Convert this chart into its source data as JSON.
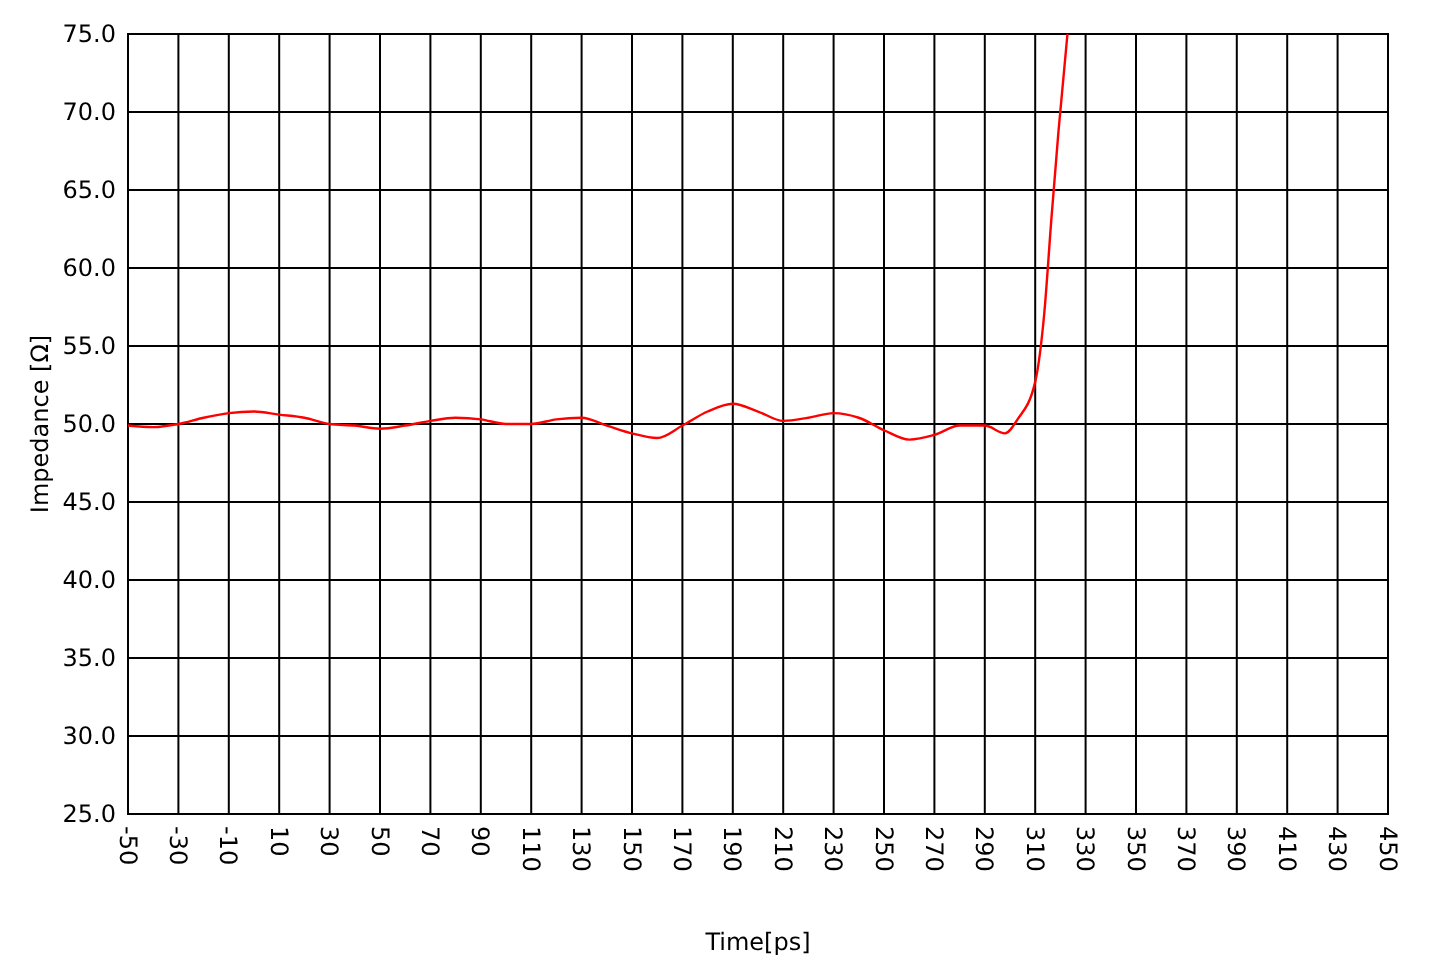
{
  "chart_data": {
    "type": "line",
    "xlabel": "Time[ps]",
    "ylabel": "Impedance [Ω]",
    "x": [
      -50,
      -40,
      -30,
      -20,
      -10,
      0,
      10,
      20,
      30,
      40,
      50,
      60,
      70,
      80,
      90,
      100,
      110,
      120,
      130,
      140,
      150,
      160,
      170,
      180,
      190,
      200,
      210,
      220,
      230,
      240,
      250,
      260,
      270,
      280,
      290,
      298,
      303,
      310,
      313.6,
      316.4,
      319.2,
      322.8
    ],
    "series": [
      {
        "color": "#ff0000",
        "values": [
          49.9,
          49.8,
          50.0,
          50.4,
          50.7,
          50.8,
          50.6,
          50.4,
          50.0,
          49.9,
          49.7,
          49.9,
          50.2,
          50.4,
          50.3,
          50.0,
          50.0,
          50.3,
          50.4,
          49.9,
          49.4,
          49.1,
          49.9,
          50.8,
          51.3,
          50.8,
          50.2,
          50.4,
          50.7,
          50.4,
          49.6,
          49.0,
          49.3,
          49.9,
          49.9,
          49.4,
          50.3,
          52.7,
          57.1,
          63.1,
          68.7,
          75.0
        ]
      }
    ],
    "xlim": [
      -50,
      450
    ],
    "ylim": [
      25,
      75
    ],
    "xticks": [
      -50,
      -30,
      -10,
      10,
      30,
      50,
      70,
      90,
      110,
      130,
      150,
      170,
      190,
      210,
      230,
      250,
      270,
      290,
      310,
      330,
      350,
      370,
      390,
      410,
      430,
      450
    ],
    "yticks": [
      {
        "value": 25,
        "label": "25.0"
      },
      {
        "value": 30,
        "label": "30.0"
      },
      {
        "value": 35,
        "label": "35.0"
      },
      {
        "value": 40,
        "label": "40.0"
      },
      {
        "value": 45,
        "label": "45.0"
      },
      {
        "value": 50,
        "label": "50.0"
      },
      {
        "value": 55,
        "label": "55.0"
      },
      {
        "value": 60,
        "label": "60.0"
      },
      {
        "value": 65,
        "label": "65.0"
      },
      {
        "value": 70,
        "label": "70.0"
      },
      {
        "value": 75,
        "label": "75.0"
      }
    ],
    "grid": true,
    "marker": "none",
    "line_style": "solid"
  }
}
